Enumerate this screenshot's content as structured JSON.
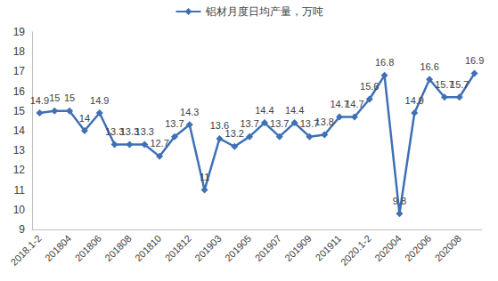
{
  "chart_data": {
    "type": "line",
    "categories": [
      "2018.1-2",
      null,
      "201804",
      null,
      "201806",
      null,
      "201808",
      null,
      "201810",
      null,
      "201812",
      null,
      "201903",
      null,
      "201905",
      null,
      "201907",
      null,
      "201909",
      null,
      "201911",
      null,
      "2020.1-2",
      null,
      "202004",
      null,
      "202006",
      null,
      "202008",
      null
    ],
    "series": [
      {
        "name": "铝材月度日均产量，万吨",
        "color": "#3f70b5",
        "marker": "diamond",
        "line_style": "solid",
        "values": [
          14.9,
          15,
          15,
          14,
          14.9,
          13.3,
          13.3,
          13.3,
          12.7,
          13.7,
          14.3,
          11,
          13.6,
          13.2,
          13.7,
          14.4,
          13.7,
          14.4,
          13.7,
          13.8,
          14.7,
          14.7,
          15.6,
          16.8,
          9.8,
          14.9,
          16.6,
          15.7,
          15.7,
          16.9
        ]
      }
    ],
    "ylim": [
      9,
      19
    ],
    "yticks": [
      9,
      10,
      11,
      12,
      13,
      14,
      15,
      16,
      17,
      18,
      19
    ],
    "grid": false,
    "legend": "top",
    "data_labels": true
  }
}
